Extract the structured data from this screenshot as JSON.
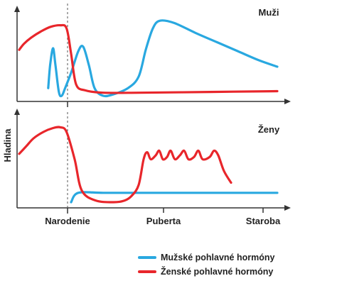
{
  "chart_data": [
    {
      "type": "line",
      "panel_label": "Muži",
      "x_ticks": [
        "Narodenie",
        "Puberta",
        "Staroba"
      ],
      "series": [
        {
          "name": "Mužské pohlavné hormóny",
          "color": "#29a8e0",
          "points": [
            [
              -0.4,
              0.1
            ],
            [
              -0.36,
              0.4
            ],
            [
              -0.3,
              0.62
            ],
            [
              -0.25,
              0.4
            ],
            [
              -0.18,
              0.05
            ],
            [
              -0.12,
              0.0
            ],
            [
              -0.05,
              0.1
            ],
            [
              0.05,
              0.3
            ],
            [
              0.15,
              0.58
            ],
            [
              0.22,
              0.64
            ],
            [
              0.3,
              0.4
            ],
            [
              0.38,
              0.1
            ],
            [
              0.5,
              0.0
            ],
            [
              0.65,
              0.02
            ],
            [
              0.85,
              0.1
            ],
            [
              1.0,
              0.25
            ],
            [
              1.1,
              0.6
            ],
            [
              1.2,
              0.88
            ],
            [
              1.3,
              0.98
            ],
            [
              1.5,
              0.95
            ],
            [
              1.8,
              0.82
            ],
            [
              2.1,
              0.7
            ],
            [
              2.4,
              0.58
            ],
            [
              2.7,
              0.46
            ],
            [
              2.95,
              0.38
            ]
          ]
        },
        {
          "name": "Ženské pohlavné hormóny",
          "color": "#e8262b",
          "points": [
            [
              -1.0,
              0.6
            ],
            [
              -0.9,
              0.68
            ],
            [
              -0.75,
              0.76
            ],
            [
              -0.55,
              0.84
            ],
            [
              -0.35,
              0.9
            ],
            [
              -0.15,
              0.92
            ],
            [
              -0.02,
              0.88
            ],
            [
              0.05,
              0.55
            ],
            [
              0.12,
              0.15
            ],
            [
              0.25,
              0.07
            ],
            [
              0.5,
              0.04
            ],
            [
              1.0,
              0.04
            ],
            [
              2.0,
              0.05
            ],
            [
              2.95,
              0.06
            ]
          ]
        }
      ]
    },
    {
      "type": "line",
      "panel_label": "Ženy",
      "ylabel": "Hladina",
      "x_ticks": [
        "Narodenie",
        "Puberta",
        "Staroba"
      ],
      "series": [
        {
          "name": "Mužské pohlavné hormóny",
          "color": "#29a8e0",
          "points": [
            [
              0.05,
              0.0
            ],
            [
              0.15,
              0.12
            ],
            [
              0.5,
              0.12
            ],
            [
              1.0,
              0.12
            ],
            [
              2.0,
              0.12
            ],
            [
              2.95,
              0.12
            ]
          ]
        },
        {
          "name": "Ženské pohlavné hormóny",
          "color": "#e8262b",
          "points": [
            [
              -1.0,
              0.62
            ],
            [
              -0.85,
              0.72
            ],
            [
              -0.7,
              0.82
            ],
            [
              -0.5,
              0.9
            ],
            [
              -0.3,
              0.95
            ],
            [
              -0.15,
              0.96
            ],
            [
              -0.02,
              0.9
            ],
            [
              0.1,
              0.55
            ],
            [
              0.2,
              0.15
            ],
            [
              0.4,
              0.02
            ],
            [
              0.65,
              0.0
            ],
            [
              0.8,
              0.02
            ],
            [
              0.9,
              0.08
            ],
            [
              1.0,
              0.22
            ],
            [
              1.07,
              0.55
            ],
            [
              1.12,
              0.64
            ],
            [
              1.17,
              0.55
            ],
            [
              1.24,
              0.6
            ],
            [
              1.29,
              0.66
            ],
            [
              1.34,
              0.55
            ],
            [
              1.4,
              0.58
            ],
            [
              1.45,
              0.66
            ],
            [
              1.51,
              0.55
            ],
            [
              1.58,
              0.6
            ],
            [
              1.64,
              0.66
            ],
            [
              1.7,
              0.55
            ],
            [
              1.78,
              0.58
            ],
            [
              1.84,
              0.66
            ],
            [
              1.9,
              0.55
            ],
            [
              2.0,
              0.58
            ],
            [
              2.06,
              0.66
            ],
            [
              2.12,
              0.6
            ],
            [
              2.2,
              0.4
            ],
            [
              2.3,
              0.25
            ]
          ]
        }
      ]
    }
  ],
  "legend": [
    {
      "label": "Mužské pohlavné hormóny",
      "color": "#29a8e0"
    },
    {
      "label": "Ženské pohlavné hormóny",
      "color": "#e8262b"
    }
  ]
}
